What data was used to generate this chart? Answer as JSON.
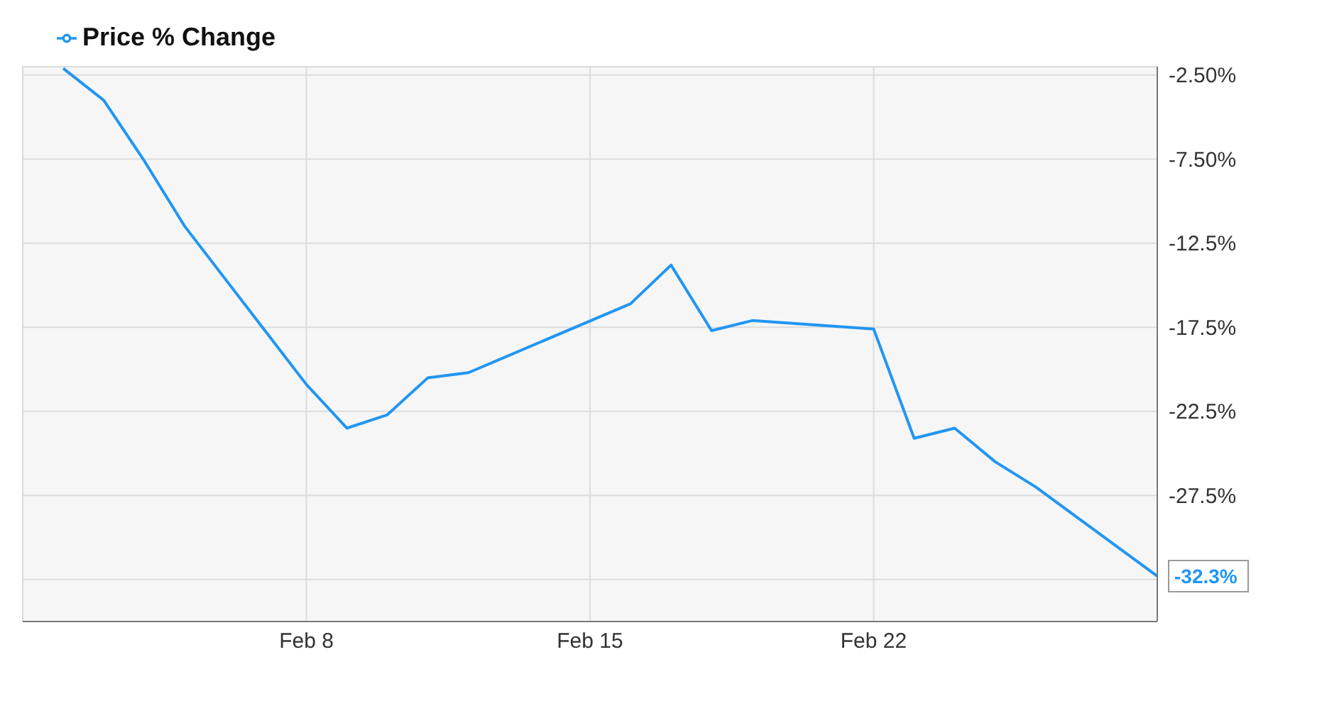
{
  "chart_data": {
    "type": "line",
    "x": [
      "--02-02",
      "--02-03",
      "--02-04",
      "--02-05",
      "--02-08",
      "--02-09",
      "--02-10",
      "--02-11",
      "--02-12",
      "--02-16",
      "--02-17",
      "--02-18",
      "--02-19",
      "--02-22",
      "--02-23",
      "--02-24",
      "--02-25",
      "--02-26",
      "--02-29"
    ],
    "series": [
      {
        "name": "Price % Change",
        "color": "#2196f3",
        "values": [
          -2.1,
          -4.0,
          -7.6,
          -11.5,
          -20.9,
          -23.5,
          -22.7,
          -20.5,
          -20.2,
          -16.1,
          -13.8,
          -17.7,
          -17.1,
          -17.6,
          -24.1,
          -23.5,
          -25.5,
          -27.0,
          -32.3
        ],
        "value_labels": [
          null,
          null,
          null,
          null,
          null,
          null,
          null,
          null,
          null,
          null,
          null,
          null,
          null,
          null,
          null,
          null,
          null,
          null,
          "-32.3%"
        ]
      }
    ],
    "xlim": [
      "--02-01",
      "--02-29"
    ],
    "xticks": [
      {
        "value": "--02-08",
        "label": "Feb 8"
      },
      {
        "value": "--02-15",
        "label": "Feb 15"
      },
      {
        "value": "--02-22",
        "label": "Feb 22"
      }
    ],
    "ylim": [
      -35,
      -2
    ],
    "yticks": [
      {
        "value": -2.5,
        "label": "-2.50%"
      },
      {
        "value": -7.5,
        "label": "-7.50%"
      },
      {
        "value": -12.5,
        "label": "-12.5%"
      },
      {
        "value": -17.5,
        "label": "-17.5%"
      },
      {
        "value": -22.5,
        "label": "-22.5%"
      },
      {
        "value": -27.5,
        "label": "-27.5%"
      },
      {
        "value": -32.5,
        "label": null
      }
    ],
    "grid": true,
    "legend": "top left",
    "marker": "none",
    "line_style": "solid"
  }
}
